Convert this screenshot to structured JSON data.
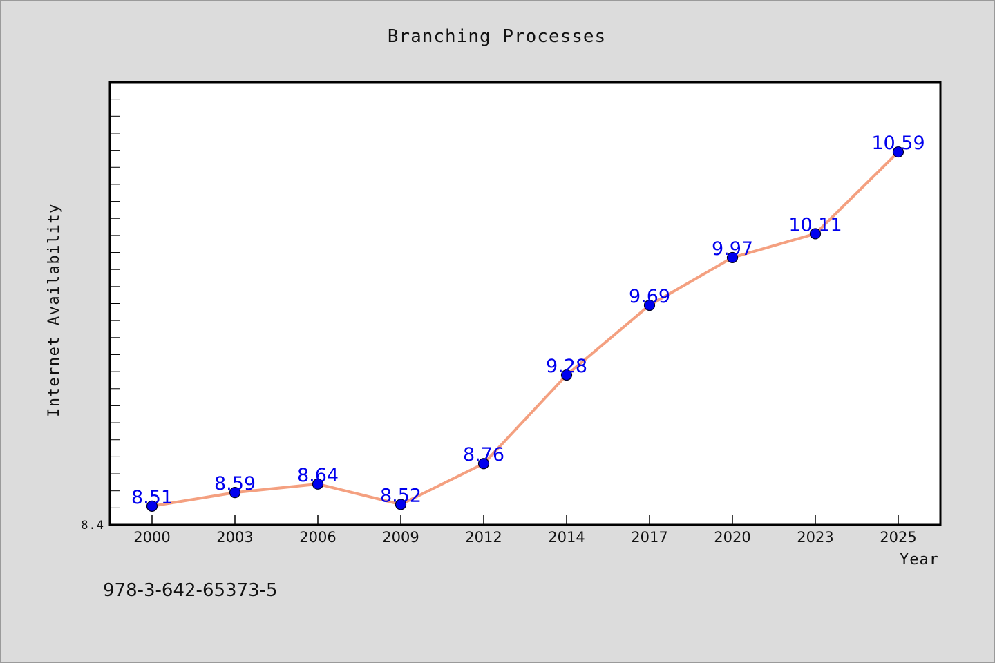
{
  "chart_data": {
    "type": "line",
    "title": "Branching Processes",
    "xlabel": "Year",
    "ylabel": "Internet Availability",
    "categories": [
      "2000",
      "2003",
      "2006",
      "2009",
      "2012",
      "2014",
      "2017",
      "2020",
      "2023",
      "2025"
    ],
    "series": [
      {
        "values": [
          8.51,
          8.59,
          8.64,
          8.52,
          8.76,
          9.28,
          9.69,
          9.97,
          10.11,
          10.59
        ]
      }
    ],
    "data_labels": [
      "8.51",
      "8.59",
      "8.64",
      "8.52",
      "8.76",
      "9.28",
      "9.69",
      "9.97",
      "10.11",
      "10.59"
    ],
    "y_tick_labels": [
      "8.4"
    ],
    "ylim": [
      8.4,
      11.0
    ],
    "grid": false,
    "legend": "none",
    "colors": {
      "line": "#f4a080",
      "marker": "#0000ee",
      "label": "#0000ee",
      "background": "#dcdcdc",
      "plot_background": "#ffffff"
    }
  },
  "footer": {
    "isbn": "978-3-642-65373-5"
  }
}
